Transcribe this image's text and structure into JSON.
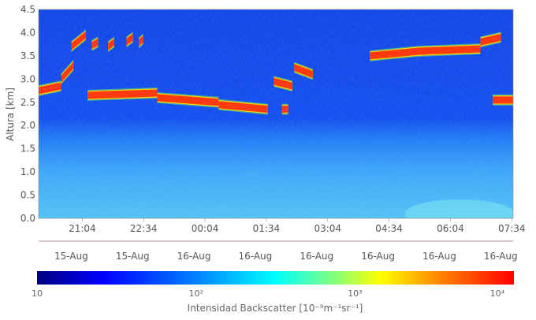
{
  "chart_data": {
    "type": "heatmap",
    "title": "",
    "ylabel": "Altura [km]",
    "ylim": [
      0,
      4.5
    ],
    "yticks": [
      "0.0",
      "0.5",
      "1.0",
      "1.5",
      "2.0",
      "2.5",
      "3.0",
      "3.5",
      "4.0",
      "4.5"
    ],
    "xrange_hours": [
      20.0,
      31.6
    ],
    "xticks": [
      {
        "time": "21:04",
        "date": "15-Aug",
        "h": 21.067
      },
      {
        "time": "22:34",
        "date": "15-Aug",
        "h": 22.567
      },
      {
        "time": "00:04",
        "date": "16-Aug",
        "h": 24.067
      },
      {
        "time": "01:34",
        "date": "16-Aug",
        "h": 25.567
      },
      {
        "time": "03:04",
        "date": "16-Aug",
        "h": 27.067
      },
      {
        "time": "04:34",
        "date": "16-Aug",
        "h": 28.567
      },
      {
        "time": "06:04",
        "date": "16-Aug",
        "h": 30.067
      },
      {
        "time": "07:34",
        "date": "16-Aug",
        "h": 31.567
      }
    ],
    "colorbar": {
      "title": "Intensidad Backscatter [10⁻⁹m⁻¹sr⁻¹]",
      "scale": "log",
      "range": [
        10,
        10000
      ],
      "ticks": [
        "10",
        "10²",
        "10³",
        "10⁴"
      ],
      "colormap": [
        "#00007f",
        "#0000ff",
        "#007fff",
        "#00ffff",
        "#7fff7f",
        "#ffff00",
        "#ff7f00",
        "#ff0000"
      ]
    },
    "cloud_layers": [
      {
        "h_start": 20.0,
        "h_end": 20.55,
        "alt": [
          2.75,
          2.85
        ]
      },
      {
        "h_start": 20.55,
        "h_end": 20.85,
        "alt": [
          3.0,
          3.3
        ]
      },
      {
        "h_start": 20.8,
        "h_end": 21.15,
        "alt": [
          3.7,
          3.95
        ]
      },
      {
        "h_start": 21.3,
        "h_end": 21.45,
        "alt": [
          3.72,
          3.8
        ]
      },
      {
        "h_start": 21.7,
        "h_end": 21.85,
        "alt": [
          3.7,
          3.8
        ]
      },
      {
        "h_start": 22.15,
        "h_end": 22.3,
        "alt": [
          3.8,
          3.9
        ]
      },
      {
        "h_start": 22.45,
        "h_end": 22.55,
        "alt": [
          3.78,
          3.86
        ]
      },
      {
        "h_start": 21.2,
        "h_end": 22.9,
        "alt": [
          2.65,
          2.7
        ]
      },
      {
        "h_start": 22.9,
        "h_end": 24.4,
        "alt": [
          2.6,
          2.5
        ]
      },
      {
        "h_start": 24.4,
        "h_end": 25.6,
        "alt": [
          2.45,
          2.35
        ]
      },
      {
        "h_start": 25.75,
        "h_end": 26.2,
        "alt": [
          2.95,
          2.85
        ]
      },
      {
        "h_start": 26.25,
        "h_end": 26.7,
        "alt": [
          3.25,
          3.1
        ]
      },
      {
        "h_start": 25.95,
        "h_end": 26.1,
        "alt": [
          2.35,
          2.35
        ]
      },
      {
        "h_start": 28.1,
        "h_end": 29.3,
        "alt": [
          3.5,
          3.6
        ]
      },
      {
        "h_start": 29.3,
        "h_end": 30.8,
        "alt": [
          3.6,
          3.65
        ]
      },
      {
        "h_start": 30.8,
        "h_end": 31.3,
        "alt": [
          3.8,
          3.9
        ]
      },
      {
        "h_start": 31.1,
        "h_end": 31.6,
        "alt": [
          2.55,
          2.55
        ]
      }
    ]
  }
}
